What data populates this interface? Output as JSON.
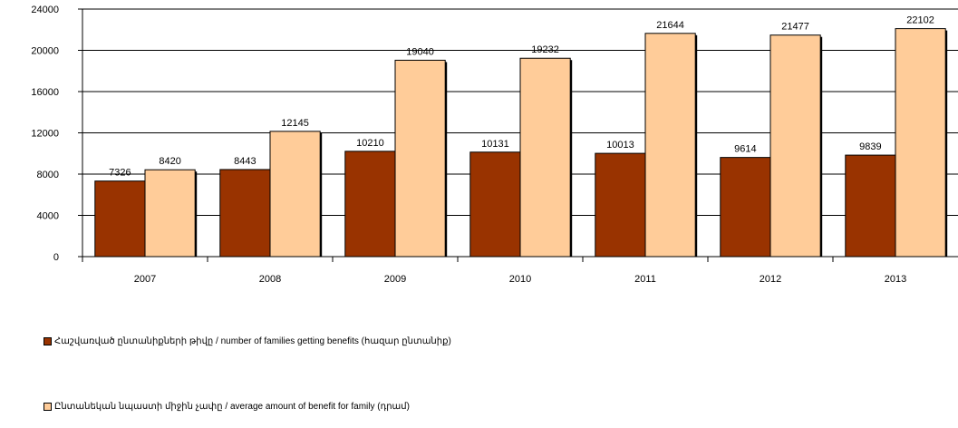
{
  "chart_data": {
    "type": "bar",
    "categories": [
      "2007",
      "2008",
      "2009",
      "2010",
      "2011",
      "2012",
      "2013"
    ],
    "series": [
      {
        "name": "Հաշվառված ընտանիքների թիվը / number of families getting benefits (հազար ընտանիք)",
        "color": "#993300",
        "values": [
          7326,
          8443,
          10210,
          10131,
          10013,
          9614,
          9839
        ],
        "labels": [
          "7326",
          "8443",
          "10210",
          "10131",
          "10013",
          "9614",
          "9839"
        ]
      },
      {
        "name": "Ընտանեկան նպաստի միջին չափը / average amount of benefit for family (դրամ)",
        "color": "#FFCC99",
        "values": [
          8420,
          12145,
          19040,
          19232,
          21644,
          21477,
          22102
        ],
        "labels": [
          "8420",
          "12145",
          "19040",
          "19232",
          "21644",
          "21477",
          "22102"
        ]
      }
    ],
    "y_ticks": [
      "0",
      "4000",
      "8000",
      "12000",
      "16000",
      "20000",
      "24000"
    ],
    "ylim": [
      0,
      24000
    ],
    "grid": true,
    "legend_position": "bottom"
  }
}
